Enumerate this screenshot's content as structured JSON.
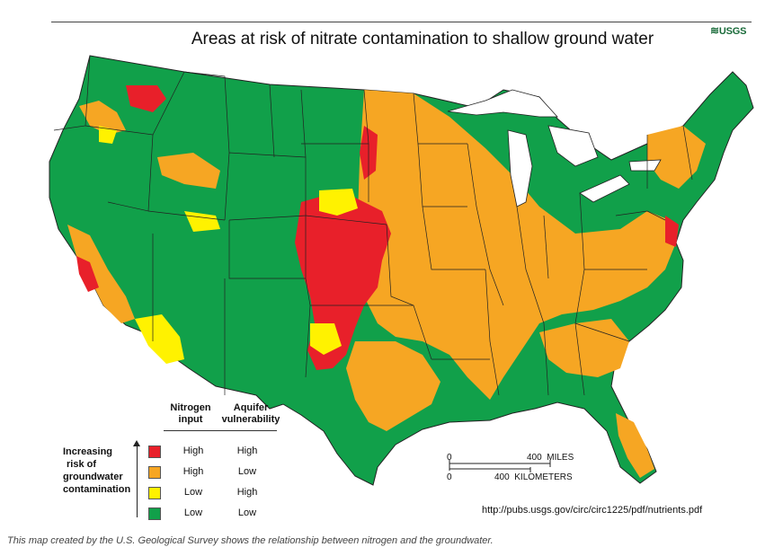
{
  "title": "Areas at risk of nitrate contamination to shallow ground water",
  "logo_text": "USGS",
  "colors": {
    "high_high": "#e8202a",
    "high_low": "#f6a623",
    "low_high": "#fff200",
    "low_low": "#11a04a",
    "lakes": "#ffffff"
  },
  "legend": {
    "col_nitrogen": "Nitrogen input",
    "col_nitrogen_l1": "Nitrogen",
    "col_nitrogen_l2": "input",
    "col_aquifer_l1": "Aquifer",
    "col_aquifer_l2": "vulnerability",
    "axis_l1": "Increasing",
    "axis_l2": "risk of",
    "axis_l3": "groundwater",
    "axis_l4": "contamination",
    "rows": [
      {
        "nitrogen": "High",
        "aquifer": "High",
        "color": "#e8202a"
      },
      {
        "nitrogen": "High",
        "aquifer": "Low",
        "color": "#f6a623"
      },
      {
        "nitrogen": "Low",
        "aquifer": "High",
        "color": "#fff200"
      },
      {
        "nitrogen": "Low",
        "aquifer": "Low",
        "color": "#11a04a"
      }
    ]
  },
  "scale": {
    "zero_top": "0",
    "miles": "400  MILES",
    "zero_bottom": "0",
    "km": "400  KILOMETERS"
  },
  "source_url": "http://pubs.usgs.gov/circ/circ1225/pdf/nutrients.pdf",
  "caption": "This map created by the U.S. Geological Survey shows the relationship between nitrogen and the groundwater."
}
